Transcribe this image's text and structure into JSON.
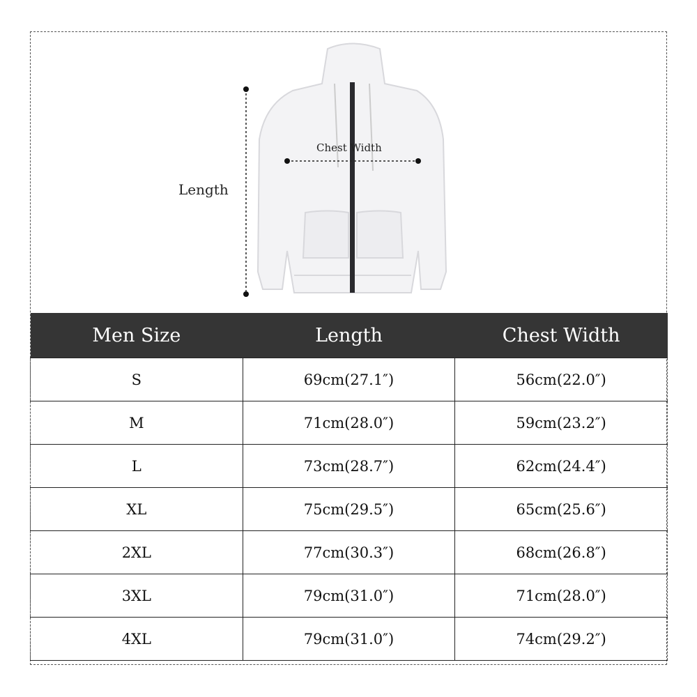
{
  "diagram": {
    "length_label": "Length",
    "chest_label": "Chest Width"
  },
  "table": {
    "headers": [
      "Men Size",
      "Length",
      "Chest Width"
    ],
    "rows": [
      [
        "S",
        "69cm(27.1″)",
        "56cm(22.0″)"
      ],
      [
        "M",
        "71cm(28.0″)",
        "59cm(23.2″)"
      ],
      [
        "L",
        "73cm(28.7″)",
        "62cm(24.4″)"
      ],
      [
        "XL",
        "75cm(29.5″)",
        "65cm(25.6″)"
      ],
      [
        "2XL",
        "77cm(30.3″)",
        "68cm(26.8″)"
      ],
      [
        "3XL",
        "79cm(31.0″)",
        "71cm(28.0″)"
      ],
      [
        "4XL",
        "79cm(31.0″)",
        "74cm(29.2″)"
      ]
    ],
    "header_color": "#353535"
  }
}
